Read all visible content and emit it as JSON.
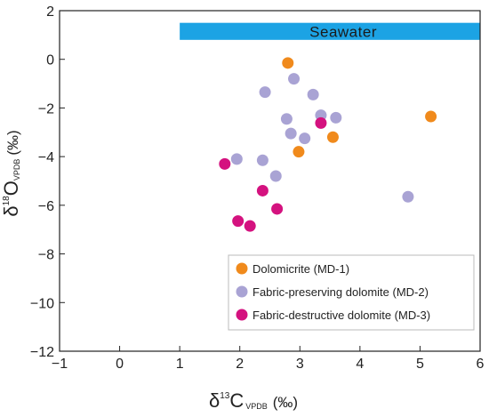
{
  "chart_data": {
    "type": "scatter",
    "title": "",
    "xlabel": {
      "delta": "δ",
      "isotope": "13",
      "element": "C",
      "sub": "VPDB",
      "unit": "(‰)"
    },
    "ylabel": {
      "delta": "δ",
      "isotope": "18",
      "element": "O",
      "sub": "VPDB",
      "unit": "(‰)"
    },
    "xlim": [
      -1,
      6
    ],
    "ylim": [
      -12,
      2
    ],
    "xticks": [
      -1,
      0,
      1,
      2,
      3,
      4,
      5,
      6
    ],
    "yticks": [
      2,
      0,
      -2,
      -4,
      -6,
      -8,
      -10,
      -12
    ],
    "xtick_labels": [
      "−1",
      "0",
      "1",
      "2",
      "3",
      "4",
      "5",
      "6"
    ],
    "ytick_labels": [
      "2",
      "0",
      "−2",
      "−4",
      "−6",
      "−8",
      "−10",
      "−12"
    ],
    "grid": false,
    "legend_position": "bottom-right",
    "band": {
      "label": "Seawater",
      "x": [
        1,
        6
      ],
      "y": [
        0.8,
        1.5
      ],
      "color": "#1ca3e4"
    },
    "series": [
      {
        "name": "Dolomicrite (MD-1)",
        "color": "#f08a1c",
        "points": [
          [
            2.8,
            -0.15
          ],
          [
            2.98,
            -3.8
          ],
          [
            3.55,
            -3.2
          ],
          [
            5.18,
            -2.35
          ]
        ]
      },
      {
        "name": "Fabric-preserving dolomite (MD-2)",
        "color": "#a9a3d4",
        "points": [
          [
            2.42,
            -1.35
          ],
          [
            2.9,
            -0.8
          ],
          [
            3.22,
            -1.45
          ],
          [
            2.78,
            -2.45
          ],
          [
            3.35,
            -2.3
          ],
          [
            3.6,
            -2.4
          ],
          [
            2.85,
            -3.05
          ],
          [
            3.08,
            -3.25
          ],
          [
            1.95,
            -4.1
          ],
          [
            2.38,
            -4.15
          ],
          [
            2.6,
            -4.8
          ],
          [
            4.8,
            -5.65
          ]
        ]
      },
      {
        "name": "Fabric-destructive dolomite (MD-3)",
        "color": "#d4127f",
        "points": [
          [
            1.75,
            -4.3
          ],
          [
            3.35,
            -2.62
          ],
          [
            2.38,
            -5.4
          ],
          [
            2.62,
            -6.15
          ],
          [
            1.97,
            -6.65
          ],
          [
            2.17,
            -6.85
          ]
        ]
      }
    ]
  }
}
